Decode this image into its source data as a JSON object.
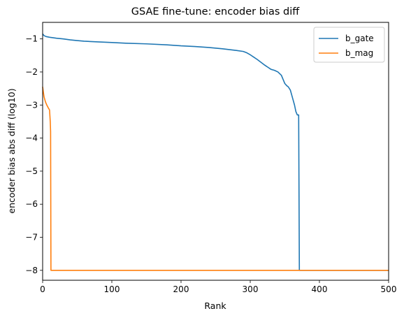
{
  "chart_data": {
    "type": "line",
    "title": "GSAE fine-tune: encoder bias diff",
    "xlabel": "Rank",
    "ylabel": "encoder bias abs diff (log10)",
    "xlim": [
      0,
      500
    ],
    "ylim": [
      -8.3,
      -0.5
    ],
    "xticks": [
      0,
      100,
      200,
      300,
      400,
      500
    ],
    "yticks": [
      -1,
      -2,
      -3,
      -4,
      -5,
      -6,
      -7,
      -8
    ],
    "grid": false,
    "legend": "top-right",
    "series": [
      {
        "name": "b_gate",
        "color": "#1f77b4",
        "points": [
          [
            0,
            -0.85
          ],
          [
            2,
            -0.9
          ],
          [
            5,
            -0.93
          ],
          [
            10,
            -0.95
          ],
          [
            20,
            -0.98
          ],
          [
            30,
            -1.0
          ],
          [
            40,
            -1.03
          ],
          [
            50,
            -1.05
          ],
          [
            60,
            -1.07
          ],
          [
            80,
            -1.09
          ],
          [
            100,
            -1.11
          ],
          [
            120,
            -1.13
          ],
          [
            150,
            -1.15
          ],
          [
            180,
            -1.18
          ],
          [
            200,
            -1.21
          ],
          [
            220,
            -1.23
          ],
          [
            240,
            -1.26
          ],
          [
            260,
            -1.3
          ],
          [
            280,
            -1.35
          ],
          [
            290,
            -1.38
          ],
          [
            295,
            -1.42
          ],
          [
            300,
            -1.48
          ],
          [
            305,
            -1.55
          ],
          [
            310,
            -1.62
          ],
          [
            315,
            -1.7
          ],
          [
            320,
            -1.78
          ],
          [
            325,
            -1.85
          ],
          [
            330,
            -1.92
          ],
          [
            335,
            -1.95
          ],
          [
            340,
            -2.0
          ],
          [
            345,
            -2.1
          ],
          [
            348,
            -2.25
          ],
          [
            350,
            -2.35
          ],
          [
            353,
            -2.42
          ],
          [
            355,
            -2.45
          ],
          [
            358,
            -2.55
          ],
          [
            360,
            -2.7
          ],
          [
            362,
            -2.85
          ],
          [
            364,
            -3.0
          ],
          [
            366,
            -3.2
          ],
          [
            368,
            -3.3
          ],
          [
            370,
            -3.3
          ],
          [
            371,
            -8.0
          ],
          [
            500,
            -8.0
          ]
        ]
      },
      {
        "name": "b_mag",
        "color": "#ff7f0e",
        "points": [
          [
            0,
            -2.45
          ],
          [
            1,
            -2.6
          ],
          [
            2,
            -2.75
          ],
          [
            4,
            -2.9
          ],
          [
            6,
            -3.0
          ],
          [
            8,
            -3.08
          ],
          [
            10,
            -3.15
          ],
          [
            11,
            -3.5
          ],
          [
            11.5,
            -3.8
          ],
          [
            12,
            -8.0
          ],
          [
            500,
            -8.0
          ]
        ]
      }
    ]
  }
}
